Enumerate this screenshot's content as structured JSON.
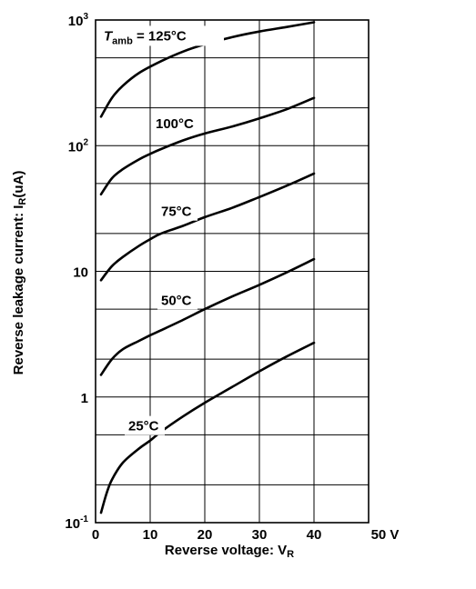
{
  "chart_data": {
    "type": "line",
    "title": "",
    "xlabel": "Reverse voltage: V",
    "xlabel_sub": "R",
    "ylabel": "Reverse leakage current: I",
    "ylabel_sub": "R",
    "ylabel_unit": "(uA)",
    "xscale": "linear",
    "yscale": "log",
    "xlim": [
      0,
      50
    ],
    "ylim": [
      0.1,
      1000
    ],
    "grid": true,
    "x_ticks": [
      {
        "value": 0,
        "label": "0"
      },
      {
        "value": 10,
        "label": "10"
      },
      {
        "value": 20,
        "label": "20"
      },
      {
        "value": 30,
        "label": "30"
      },
      {
        "value": 40,
        "label": "40"
      },
      {
        "value": 50,
        "label": "50 V"
      }
    ],
    "y_ticks": [
      {
        "value": 0.1,
        "base": "10",
        "exp": "-1"
      },
      {
        "value": 1,
        "base": "1",
        "exp": ""
      },
      {
        "value": 10,
        "base": "10",
        "exp": ""
      },
      {
        "value": 100,
        "base": "10",
        "exp": "2"
      },
      {
        "value": 1000,
        "base": "10",
        "exp": "3"
      }
    ],
    "y_minor_grid": [
      0.2,
      0.5,
      2,
      5,
      20,
      50,
      200,
      500
    ],
    "series": [
      {
        "name": "125°C",
        "prefix_symbol": "T",
        "prefix_sub": "amb",
        "label_pos": [
          1.5,
          700
        ],
        "x": [
          1,
          3,
          5,
          8,
          12,
          16,
          20,
          25,
          30,
          35,
          40
        ],
        "y": [
          170,
          240,
          300,
          380,
          470,
          560,
          640,
          730,
          810,
          880,
          960
        ]
      },
      {
        "name": "100°C",
        "label_pos": [
          11,
          140
        ],
        "x": [
          1,
          3,
          5,
          8,
          10,
          12,
          16,
          20,
          25,
          30,
          35,
          40
        ],
        "y": [
          41,
          55,
          65,
          78,
          86,
          94,
          110,
          125,
          142,
          165,
          195,
          240
        ]
      },
      {
        "name": "75°C",
        "label_pos": [
          12,
          28
        ],
        "x": [
          1,
          3,
          5,
          8,
          10,
          12,
          16,
          20,
          25,
          30,
          35,
          40
        ],
        "y": [
          8.5,
          11,
          13,
          16,
          18,
          20,
          23,
          27,
          32,
          39,
          48,
          60
        ]
      },
      {
        "name": "50°C",
        "label_pos": [
          12,
          5.5
        ],
        "x": [
          1,
          3,
          5,
          8,
          10,
          12,
          16,
          20,
          25,
          30,
          35,
          40
        ],
        "y": [
          1.5,
          2.0,
          2.4,
          2.8,
          3.1,
          3.4,
          4.1,
          5.0,
          6.3,
          7.8,
          9.8,
          12.5
        ]
      },
      {
        "name": "25°C",
        "label_pos": [
          6,
          0.55
        ],
        "x": [
          1,
          2,
          3,
          5,
          8,
          10,
          12,
          16,
          20,
          25,
          30,
          35,
          40
        ],
        "y": [
          0.12,
          0.17,
          0.22,
          0.3,
          0.39,
          0.45,
          0.53,
          0.7,
          0.9,
          1.2,
          1.6,
          2.1,
          2.7
        ]
      }
    ]
  }
}
